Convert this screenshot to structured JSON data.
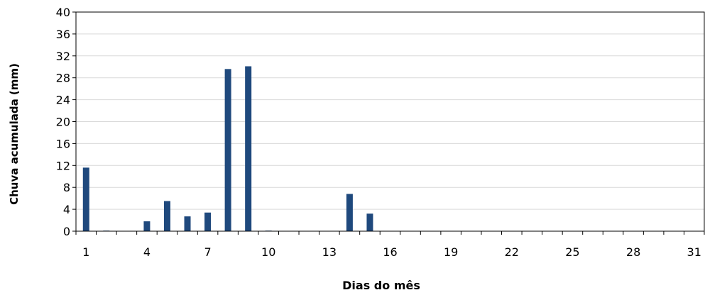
{
  "chart_data": {
    "type": "bar",
    "xlabel": "Dias do mês",
    "ylabel": "Chuva acumulada (mm)",
    "x": [
      1,
      2,
      3,
      4,
      5,
      6,
      7,
      8,
      9,
      10,
      11,
      12,
      13,
      14,
      15,
      16,
      17,
      18,
      19,
      20,
      21,
      22,
      23,
      24,
      25,
      26,
      27,
      28,
      29,
      30,
      31
    ],
    "values": [
      11.6,
      0.1,
      0,
      1.8,
      5.5,
      2.7,
      3.4,
      29.6,
      30.1,
      0.1,
      0,
      0,
      0,
      6.8,
      3.2,
      0,
      0,
      0,
      0,
      0,
      0,
      0,
      0,
      0,
      0,
      0,
      0,
      0,
      0,
      0,
      0
    ],
    "x_tick_labels": [
      "1",
      "4",
      "7",
      "10",
      "13",
      "16",
      "19",
      "22",
      "25",
      "28",
      "31"
    ],
    "y_tick_labels": [
      "0",
      "4",
      "8",
      "12",
      "16",
      "20",
      "24",
      "28",
      "32",
      "36",
      "40"
    ],
    "ylim": [
      0,
      40
    ],
    "grid": true,
    "legend": false,
    "bar_color": "#1f497d",
    "grid_color": "#d9d9d9"
  }
}
